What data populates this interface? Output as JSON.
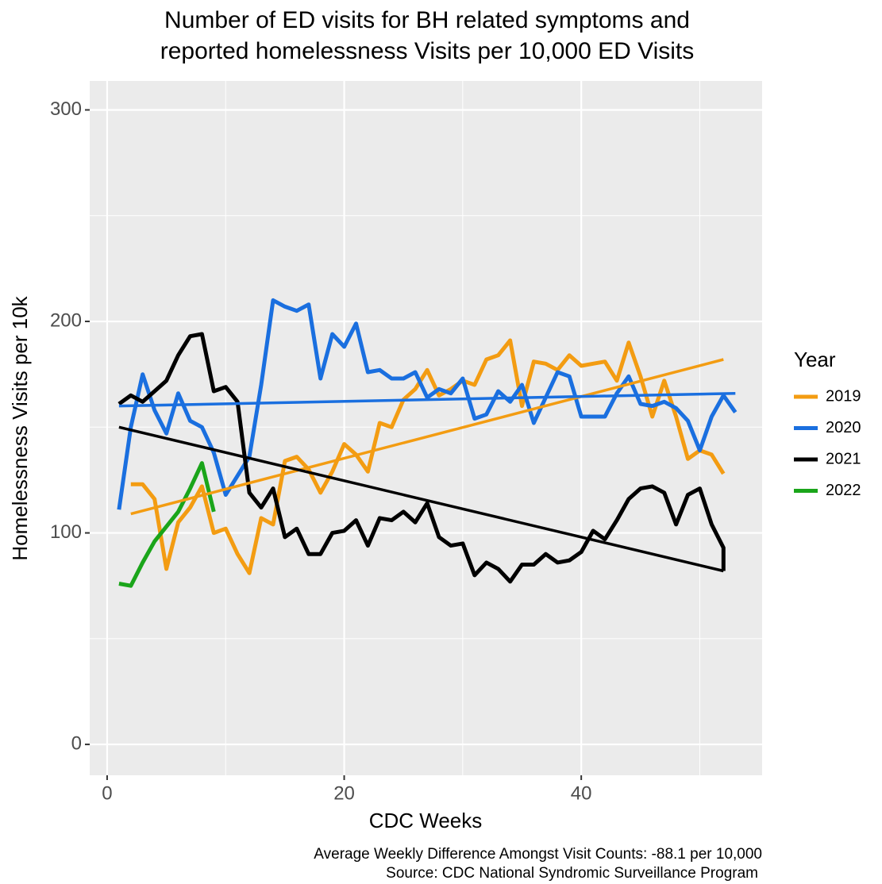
{
  "chart_data": {
    "type": "line",
    "title": [
      "Number of ED visits for BH related symptoms and",
      "reported homelessness Visits per 10,000 ED Visits"
    ],
    "xlabel": "CDC Weeks",
    "ylabel": "Homelessness Visits per 10k",
    "caption": [
      "Average Weekly Difference Amongst Visit Counts: -88.1 per 10,000",
      "Source: CDC National Syndromic Surveillance Program"
    ],
    "legend_title": "Year",
    "legend_position": "right",
    "grid": true,
    "xlim": [
      -1.47,
      55.26
    ],
    "ylim": [
      -14.6,
      313.7
    ],
    "xticks": [
      0,
      20,
      40
    ],
    "yticks": [
      0,
      100,
      200,
      300
    ],
    "xminor": [
      10,
      30,
      50
    ],
    "yminor": [
      50,
      150,
      250
    ],
    "series": [
      {
        "name": "2019",
        "color": "#f39c12",
        "x": [
          2,
          3,
          4,
          5,
          6,
          7,
          8,
          9,
          10,
          11,
          12,
          13,
          14,
          15,
          16,
          17,
          18,
          19,
          20,
          21,
          22,
          23,
          24,
          25,
          26,
          27,
          28,
          29,
          30,
          31,
          32,
          33,
          34,
          35,
          36,
          37,
          38,
          39,
          40,
          41,
          42,
          43,
          44,
          45,
          46,
          47,
          48,
          49,
          50,
          51,
          52
        ],
        "values": [
          123,
          123,
          116,
          83,
          105,
          112,
          122,
          100,
          102,
          90,
          81,
          107,
          104,
          134,
          136,
          130,
          119,
          129,
          142,
          137,
          129,
          152,
          150,
          163,
          168,
          177,
          165,
          168,
          172,
          170,
          182,
          184,
          191,
          160,
          181,
          180,
          177,
          184,
          179,
          180,
          181,
          172,
          190,
          174,
          155,
          172,
          155,
          135,
          139,
          137,
          128
        ],
        "trend": {
          "x": [
            2,
            52
          ],
          "values": [
            109,
            182
          ]
        }
      },
      {
        "name": "2020",
        "color": "#1a6fdf",
        "x": [
          1,
          2,
          3,
          4,
          5,
          6,
          7,
          8,
          9,
          10,
          11,
          12,
          13,
          14,
          15,
          16,
          17,
          18,
          19,
          20,
          21,
          22,
          23,
          24,
          25,
          26,
          27,
          28,
          29,
          30,
          31,
          32,
          33,
          34,
          35,
          36,
          37,
          38,
          39,
          40,
          41,
          42,
          43,
          44,
          45,
          46,
          47,
          48,
          49,
          50,
          51,
          52,
          53
        ],
        "values": [
          111,
          150,
          175,
          158,
          147,
          166,
          153,
          150,
          138,
          118,
          127,
          136,
          170,
          210,
          207,
          205,
          208,
          173,
          194,
          188,
          199,
          176,
          177,
          173,
          173,
          176,
          164,
          168,
          166,
          173,
          154,
          156,
          167,
          162,
          170,
          152,
          164,
          176,
          174,
          155,
          155,
          155,
          166,
          174,
          161,
          160,
          162,
          159,
          153,
          139,
          155,
          165,
          157
        ],
        "trend": {
          "x": [
            1,
            53
          ],
          "values": [
            160,
            166
          ]
        }
      },
      {
        "name": "2021",
        "color": "#000000",
        "x": [
          1,
          2,
          3,
          4,
          5,
          6,
          7,
          8,
          9,
          10,
          11,
          12,
          13,
          14,
          15,
          16,
          17,
          18,
          19,
          20,
          21,
          22,
          23,
          24,
          25,
          26,
          27,
          28,
          29,
          30,
          31,
          32,
          33,
          34,
          35,
          36,
          37,
          38,
          39,
          40,
          41,
          42,
          43,
          44,
          45,
          46,
          47,
          48,
          49,
          50,
          51,
          52,
          52
        ],
        "values": [
          161,
          165,
          162,
          167,
          172,
          184,
          193,
          194,
          167,
          169,
          162,
          119,
          112,
          121,
          98,
          102,
          90,
          90,
          100,
          101,
          106,
          94,
          107,
          106,
          110,
          105,
          114,
          98,
          94,
          95,
          80,
          86,
          83,
          77,
          85,
          85,
          90,
          86,
          87,
          91,
          101,
          97,
          106,
          116,
          121,
          122,
          119,
          104,
          118,
          121,
          104,
          93,
          82
        ],
        "trend": {
          "x": [
            1,
            52
          ],
          "values": [
            150,
            82
          ]
        }
      },
      {
        "name": "2022",
        "color": "#1aa51a",
        "x": [
          1,
          2,
          3,
          4,
          5,
          6,
          7,
          8,
          9
        ],
        "values": [
          76,
          75,
          86,
          96,
          103,
          110,
          121,
          133,
          110
        ]
      }
    ]
  }
}
